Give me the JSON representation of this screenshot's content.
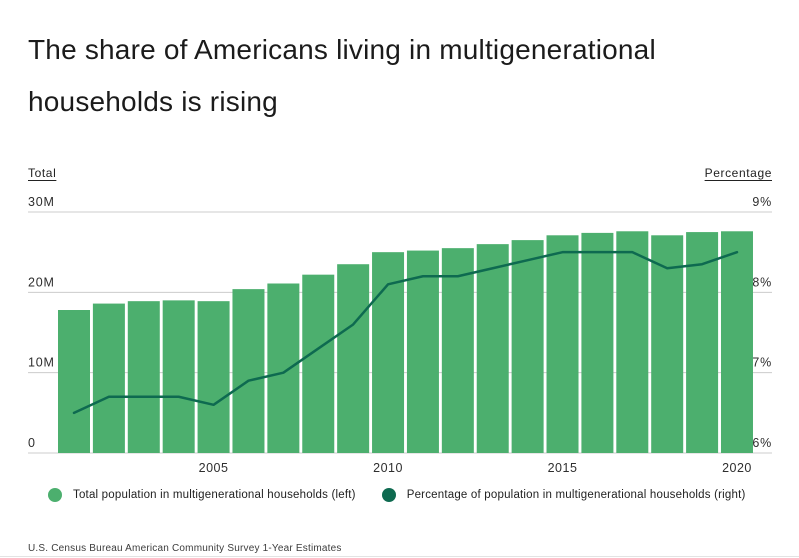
{
  "title": "The share of Americans living in multigenerational households is rising",
  "colors": {
    "bar": "#4CAF6E",
    "line": "#0E6A50",
    "gridline": "#cccccc",
    "tick_text": "#2e2e2e"
  },
  "chart_data": {
    "type": "combo_bar_line",
    "x": [
      2001,
      2002,
      2003,
      2004,
      2005,
      2006,
      2007,
      2008,
      2009,
      2010,
      2011,
      2012,
      2013,
      2014,
      2015,
      2016,
      2017,
      2018,
      2019,
      2020
    ],
    "x_tick_years": [
      2005,
      2010,
      2015,
      2020
    ],
    "left_axis": {
      "title": "Total",
      "unit": "millions",
      "min": 0,
      "max": 30,
      "ticks": [
        {
          "label": "30M",
          "value": 30
        },
        {
          "label": "20M",
          "value": 20
        },
        {
          "label": "10M",
          "value": 10
        },
        {
          "label": "0",
          "value": 0
        }
      ]
    },
    "right_axis": {
      "title": "Percentage",
      "unit": "percent",
      "min": 6,
      "max": 9,
      "ticks": [
        {
          "label": "9%",
          "value": 9
        },
        {
          "label": "8%",
          "value": 8
        },
        {
          "label": "7%",
          "value": 7
        },
        {
          "label": "6%",
          "value": 6
        }
      ]
    },
    "series": [
      {
        "name": "Total population in multigenerational households (left)",
        "type": "bar",
        "axis": "left",
        "color": "#4CAF6E",
        "values": [
          17.8,
          18.6,
          18.9,
          19.0,
          18.9,
          20.4,
          21.1,
          22.2,
          23.5,
          25.0,
          25.2,
          25.5,
          26.0,
          26.5,
          27.1,
          27.4,
          27.6,
          27.1,
          27.5,
          27.6
        ]
      },
      {
        "name": "Percentage of population in multigenerational households (right)",
        "type": "line",
        "axis": "right",
        "color": "#0E6A50",
        "values": [
          6.5,
          6.7,
          6.7,
          6.7,
          6.6,
          6.9,
          7.0,
          7.3,
          7.6,
          8.1,
          8.2,
          8.2,
          8.3,
          8.4,
          8.5,
          8.5,
          8.5,
          8.3,
          8.35,
          8.5
        ]
      }
    ],
    "grid": "horizontal",
    "legend_position": "bottom"
  },
  "legend": {
    "items": [
      {
        "label": "Total population in multigenerational households (left)",
        "color": "#4CAF6E"
      },
      {
        "label": "Percentage of population in multigenerational households (right)",
        "color": "#0E6A50"
      }
    ]
  },
  "source": "U.S. Census Bureau American Community Survey 1-Year Estimates"
}
